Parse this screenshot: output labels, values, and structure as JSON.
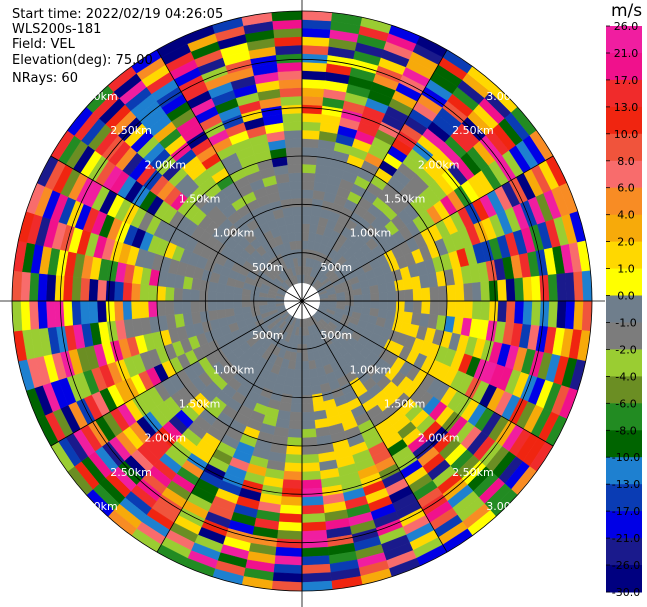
{
  "header": {
    "start_time": "Start time: 2022/02/19 04:26:05",
    "instrument": "WLS200s-181",
    "field": "Field: VEL",
    "elevation": "Elevation(deg): 75.00",
    "nrays": "NRays: 60"
  },
  "colorbar": {
    "unit": "m/s",
    "ticks": [
      "26.0",
      "21.0",
      "17.0",
      "13.0",
      "10.0",
      "8.0",
      "6.0",
      "4.0",
      "2.0",
      "1.0",
      "0.0",
      "-1.0",
      "-2.0",
      "-4.0",
      "-6.0",
      "-8.0",
      "-10.0",
      "-13.0",
      "-17.0",
      "-21.0",
      "-26.0",
      "-30.0"
    ],
    "colors": [
      "#f01ea0",
      "#f0118c",
      "#f02b2b",
      "#f02510",
      "#f0543c",
      "#f86c6c",
      "#f88c24",
      "#f7aa0a",
      "#ffd800",
      "#ffff00",
      "#6f7e8c",
      "#7c7c7c",
      "#9acd32",
      "#6b8e23",
      "#228b22",
      "#006400",
      "#1e80d0",
      "#0a3cb4",
      "#0000e6",
      "#1a1a8c",
      "#000080"
    ]
  },
  "chart_data": {
    "type": "heatmap",
    "projection": "polar PPI",
    "range_rings_km": [
      "500m",
      "1.00km",
      "1.50km",
      "2.00km",
      "2.50km",
      "3.00km"
    ],
    "max_range_km": 3.0,
    "n_rays": 60,
    "grid": true
  }
}
